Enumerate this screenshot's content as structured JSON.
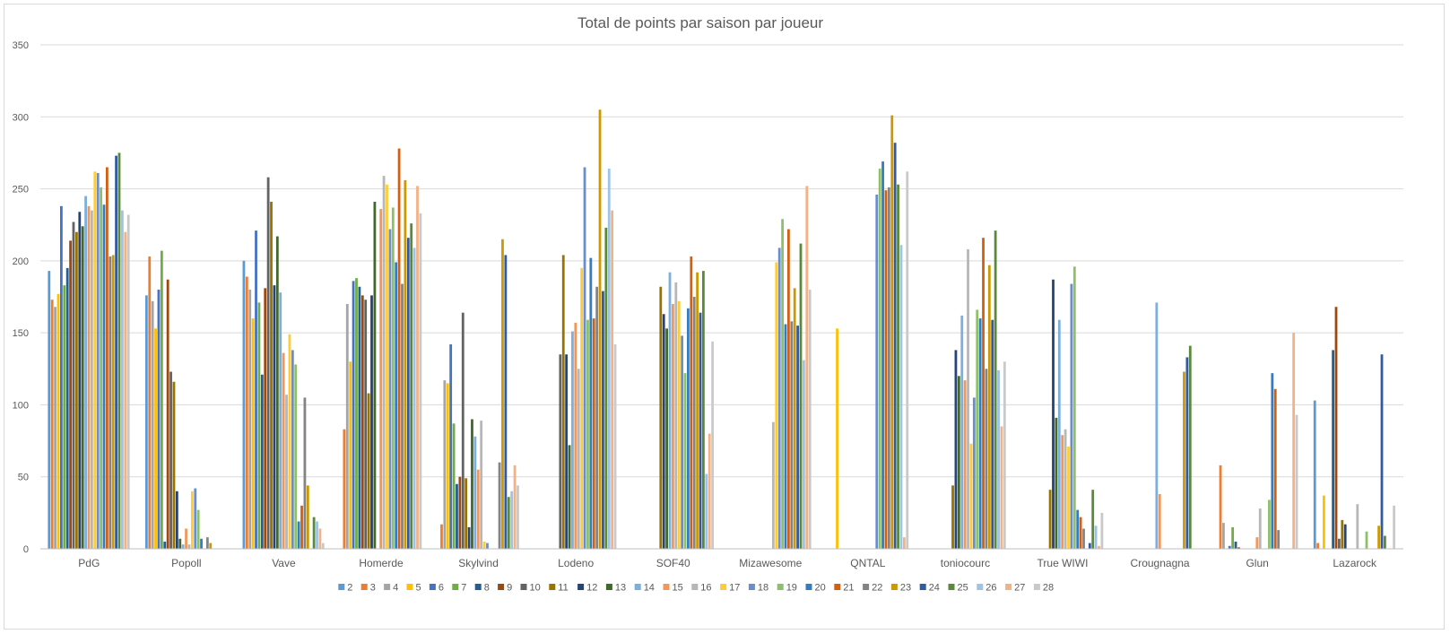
{
  "chart_data": {
    "type": "bar",
    "title": "Total de points par saison par joueur",
    "xlabel": "",
    "ylabel": "",
    "ylim": [
      0,
      350
    ],
    "yticks": [
      0,
      50,
      100,
      150,
      200,
      250,
      300,
      350
    ],
    "grid": true,
    "legend_position": "bottom",
    "categories": [
      "PdG",
      "Popoll",
      "Vave",
      "Homerde",
      "Skylvind",
      "Lodeno",
      "SOF40",
      "Mizawesome",
      "QNTAL",
      "toniocourc",
      "True WIWI",
      "Crougnagna",
      "Glun",
      "Lazarock"
    ],
    "series": [
      {
        "name": "2",
        "color": "#5B9BD5",
        "values": [
          193,
          176,
          200,
          null,
          null,
          null,
          null,
          null,
          null,
          null,
          null,
          null,
          null,
          103
        ]
      },
      {
        "name": "3",
        "color": "#ED7D31",
        "values": [
          173,
          203,
          189,
          83,
          17,
          null,
          null,
          null,
          null,
          null,
          null,
          null,
          58,
          4
        ]
      },
      {
        "name": "4",
        "color": "#A5A5A5",
        "values": [
          168,
          172,
          180,
          170,
          117,
          null,
          null,
          null,
          null,
          null,
          null,
          null,
          18,
          null
        ]
      },
      {
        "name": "5",
        "color": "#FFC000",
        "values": [
          177,
          153,
          160,
          130,
          115,
          null,
          null,
          null,
          153,
          null,
          null,
          null,
          null,
          37
        ]
      },
      {
        "name": "6",
        "color": "#4472C4",
        "values": [
          238,
          180,
          221,
          186,
          142,
          null,
          null,
          null,
          null,
          null,
          null,
          null,
          2,
          null
        ]
      },
      {
        "name": "7",
        "color": "#70AD47",
        "values": [
          183,
          207,
          171,
          188,
          87,
          null,
          null,
          null,
          null,
          null,
          null,
          null,
          15,
          null
        ]
      },
      {
        "name": "8",
        "color": "#255E91",
        "values": [
          195,
          5,
          121,
          182,
          45,
          null,
          null,
          null,
          null,
          null,
          null,
          null,
          5,
          138
        ]
      },
      {
        "name": "9",
        "color": "#9E480E",
        "values": [
          214,
          187,
          181,
          176,
          50,
          null,
          null,
          null,
          null,
          null,
          null,
          null,
          1,
          168
        ]
      },
      {
        "name": "10",
        "color": "#636363",
        "values": [
          227,
          123,
          258,
          173,
          164,
          135,
          null,
          null,
          null,
          null,
          null,
          null,
          null,
          7
        ]
      },
      {
        "name": "11",
        "color": "#997300",
        "values": [
          220,
          116,
          241,
          108,
          49,
          204,
          182,
          null,
          null,
          44,
          41,
          null,
          null,
          20
        ]
      },
      {
        "name": "12",
        "color": "#264478",
        "values": [
          234,
          40,
          183,
          176,
          15,
          135,
          163,
          null,
          null,
          138,
          187,
          null,
          null,
          17
        ]
      },
      {
        "name": "13",
        "color": "#43682B",
        "values": [
          224,
          7,
          217,
          241,
          90,
          72,
          153,
          null,
          null,
          120,
          91,
          null,
          null,
          null
        ]
      },
      {
        "name": "14",
        "color": "#7CAFDD",
        "values": [
          245,
          3,
          178,
          null,
          78,
          151,
          192,
          null,
          null,
          162,
          159,
          171,
          null,
          null
        ]
      },
      {
        "name": "15",
        "color": "#F1975A",
        "values": [
          238,
          14,
          136,
          236,
          55,
          157,
          170,
          null,
          null,
          117,
          79,
          38,
          8,
          null
        ]
      },
      {
        "name": "16",
        "color": "#B7B7B7",
        "values": [
          235,
          3,
          107,
          259,
          89,
          125,
          185,
          88,
          null,
          208,
          83,
          null,
          28,
          31
        ]
      },
      {
        "name": "17",
        "color": "#FFCD33",
        "values": [
          262,
          40,
          149,
          253,
          5,
          195,
          172,
          199,
          null,
          73,
          71,
          null,
          null,
          null
        ]
      },
      {
        "name": "18",
        "color": "#698ED0",
        "values": [
          261,
          42,
          138,
          222,
          4,
          265,
          148,
          209,
          246,
          105,
          184,
          null,
          null,
          null
        ]
      },
      {
        "name": "19",
        "color": "#8CC168",
        "values": [
          251,
          27,
          128,
          237,
          null,
          159,
          122,
          229,
          264,
          166,
          196,
          null,
          34,
          12
        ]
      },
      {
        "name": "20",
        "color": "#327DC2",
        "values": [
          239,
          7,
          19,
          199,
          null,
          202,
          167,
          156,
          269,
          160,
          27,
          null,
          122,
          null
        ]
      },
      {
        "name": "21",
        "color": "#D26012",
        "values": [
          265,
          null,
          30,
          278,
          null,
          160,
          203,
          222,
          249,
          216,
          22,
          null,
          111,
          null
        ]
      },
      {
        "name": "22",
        "color": "#848484",
        "values": [
          203,
          8,
          105,
          184,
          60,
          182,
          175,
          158,
          251,
          125,
          14,
          null,
          13,
          null
        ]
      },
      {
        "name": "23",
        "color": "#CC9A00",
        "values": [
          204,
          4,
          44,
          256,
          215,
          305,
          192,
          181,
          301,
          197,
          null,
          123,
          null,
          16
        ]
      },
      {
        "name": "24",
        "color": "#335AA1",
        "values": [
          273,
          null,
          null,
          216,
          204,
          179,
          164,
          155,
          282,
          159,
          4,
          133,
          null,
          135
        ]
      },
      {
        "name": "25",
        "color": "#5A8A39",
        "values": [
          275,
          null,
          22,
          226,
          36,
          223,
          193,
          212,
          253,
          221,
          41,
          141,
          null,
          9
        ]
      },
      {
        "name": "26",
        "color": "#9DC3E6",
        "values": [
          235,
          null,
          19,
          209,
          40,
          264,
          52,
          131,
          211,
          124,
          16,
          null,
          null,
          null
        ]
      },
      {
        "name": "27",
        "color": "#F4B183",
        "values": [
          220,
          null,
          14,
          252,
          58,
          235,
          80,
          252,
          8,
          85,
          2,
          null,
          150,
          null
        ]
      },
      {
        "name": "28",
        "color": "#C9C9C9",
        "values": [
          232,
          null,
          4,
          233,
          44,
          142,
          144,
          180,
          262,
          130,
          25,
          null,
          93,
          30
        ]
      }
    ]
  }
}
